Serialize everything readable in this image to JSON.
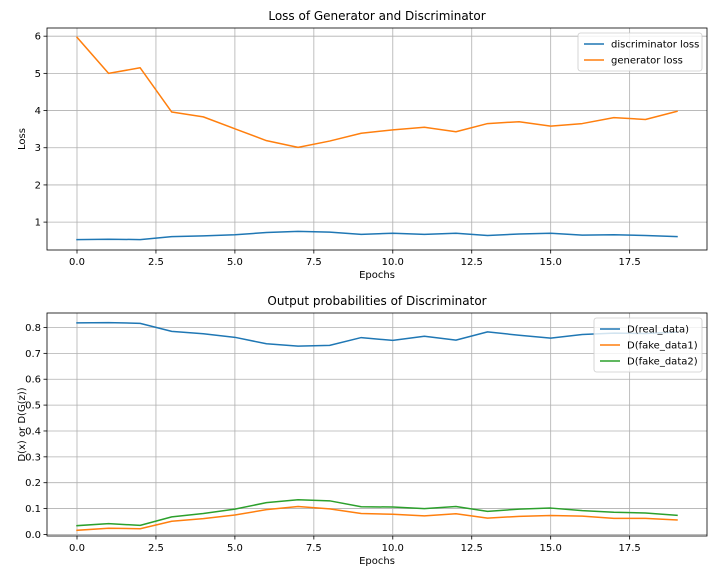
{
  "chart_data": [
    {
      "type": "line",
      "title": "Loss of Generator and Discriminator",
      "xlabel": "Epochs",
      "ylabel": "Loss",
      "xlim": [
        -0.95,
        19.95
      ],
      "ylim": [
        0.25,
        6.22
      ],
      "xticks": [
        0.0,
        2.5,
        5.0,
        7.5,
        10.0,
        12.5,
        15.0,
        17.5
      ],
      "xtick_labels": [
        "0.0",
        "2.5",
        "5.0",
        "7.5",
        "10.0",
        "12.5",
        "15.0",
        "17.5"
      ],
      "yticks": [
        1,
        2,
        3,
        4,
        5,
        6
      ],
      "ytick_labels": [
        "1",
        "2",
        "3",
        "4",
        "5",
        "6"
      ],
      "grid": true,
      "legend_position": "top-right",
      "x": [
        0,
        1,
        2,
        3,
        4,
        5,
        6,
        7,
        8,
        9,
        10,
        11,
        12,
        13,
        14,
        15,
        16,
        17,
        18,
        19
      ],
      "series": [
        {
          "name": "discriminator loss",
          "color": "#1f77b4",
          "values": [
            0.53,
            0.54,
            0.53,
            0.61,
            0.63,
            0.66,
            0.72,
            0.75,
            0.73,
            0.67,
            0.7,
            0.67,
            0.7,
            0.64,
            0.68,
            0.7,
            0.65,
            0.66,
            0.64,
            0.61
          ]
        },
        {
          "name": "generator loss",
          "color": "#ff7f0e",
          "values": [
            5.97,
            5.0,
            5.15,
            3.96,
            3.83,
            3.51,
            3.19,
            3.01,
            3.18,
            3.39,
            3.48,
            3.55,
            3.43,
            3.65,
            3.7,
            3.58,
            3.65,
            3.81,
            3.76,
            3.98
          ]
        }
      ]
    },
    {
      "type": "line",
      "title": "Output probabilities of Discriminator",
      "xlabel": "Epochs",
      "ylabel": "D(x) or D(G(z))",
      "xlim": [
        -0.95,
        19.95
      ],
      "ylim": [
        -0.006,
        0.856
      ],
      "xticks": [
        0.0,
        2.5,
        5.0,
        7.5,
        10.0,
        12.5,
        15.0,
        17.5
      ],
      "xtick_labels": [
        "0.0",
        "2.5",
        "5.0",
        "7.5",
        "10.0",
        "12.5",
        "15.0",
        "17.5"
      ],
      "yticks": [
        0.0,
        0.1,
        0.2,
        0.3,
        0.4,
        0.5,
        0.6,
        0.7,
        0.8
      ],
      "ytick_labels": [
        "0.0",
        "0.1",
        "0.2",
        "0.3",
        "0.4",
        "0.5",
        "0.6",
        "0.7",
        "0.8"
      ],
      "grid": true,
      "legend_position": "top-right",
      "x": [
        0,
        1,
        2,
        3,
        4,
        5,
        6,
        7,
        8,
        9,
        10,
        11,
        12,
        13,
        14,
        15,
        16,
        17,
        18,
        19
      ],
      "series": [
        {
          "name": "D(real_data)",
          "color": "#1f77b4",
          "values": [
            0.818,
            0.819,
            0.816,
            0.785,
            0.776,
            0.762,
            0.737,
            0.728,
            0.731,
            0.761,
            0.75,
            0.766,
            0.751,
            0.783,
            0.77,
            0.759,
            0.773,
            0.778,
            0.777,
            0.782
          ]
        },
        {
          "name": "D(fake_data1)",
          "color": "#ff7f0e",
          "values": [
            0.016,
            0.024,
            0.022,
            0.051,
            0.061,
            0.075,
            0.096,
            0.108,
            0.099,
            0.081,
            0.078,
            0.072,
            0.08,
            0.063,
            0.07,
            0.073,
            0.071,
            0.062,
            0.062,
            0.056
          ]
        },
        {
          "name": "D(fake_data2)",
          "color": "#2ca02c",
          "values": [
            0.034,
            0.042,
            0.035,
            0.068,
            0.081,
            0.098,
            0.123,
            0.134,
            0.13,
            0.107,
            0.106,
            0.1,
            0.108,
            0.089,
            0.098,
            0.102,
            0.092,
            0.086,
            0.083,
            0.074
          ]
        }
      ]
    }
  ]
}
